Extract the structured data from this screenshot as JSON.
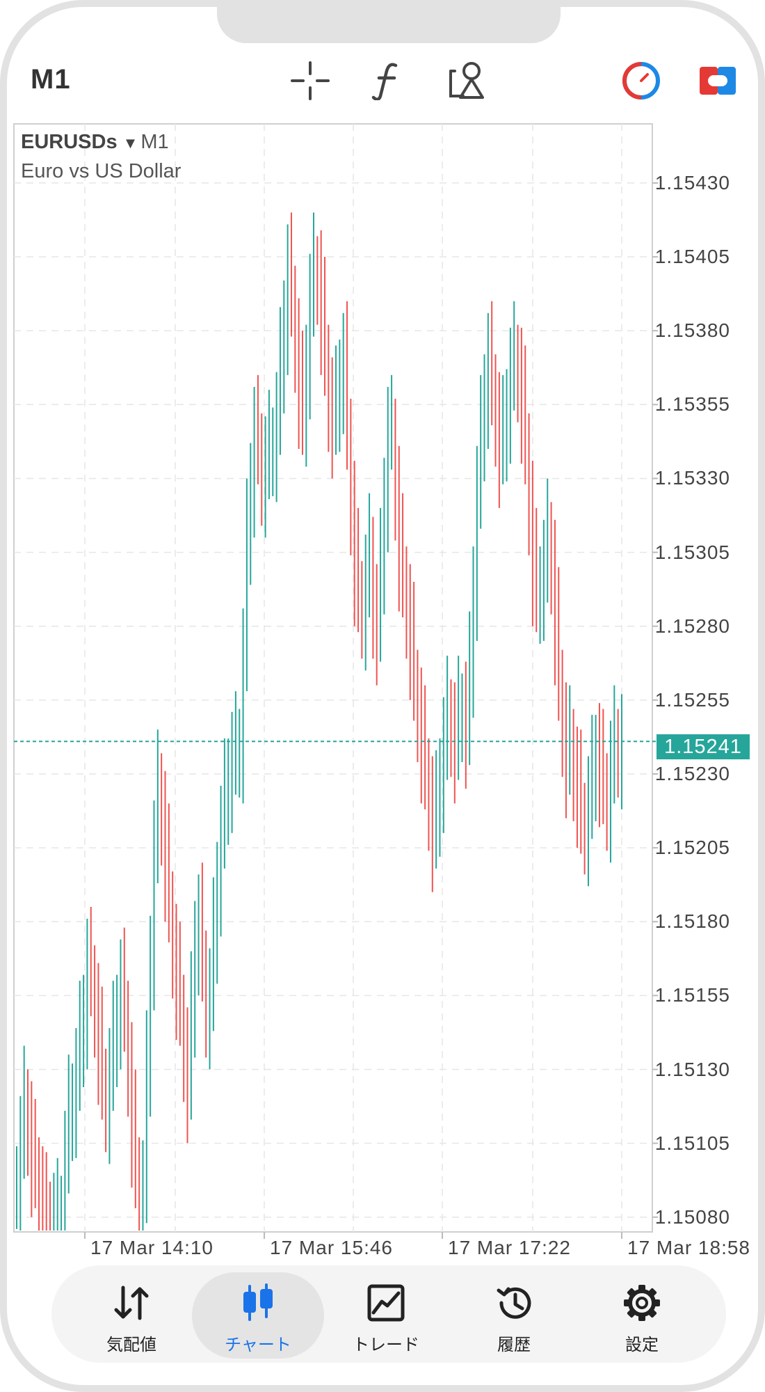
{
  "header": {
    "timeframe": "M1",
    "tools": [
      {
        "name": "crosshair-icon"
      },
      {
        "name": "indicators-icon"
      },
      {
        "name": "objects-icon"
      },
      {
        "name": "signal-icon"
      },
      {
        "name": "one-click-trading-icon"
      }
    ]
  },
  "chart": {
    "symbol": "EURUSDs",
    "timeframe": "M1",
    "description": "Euro vs US Dollar",
    "current_price": "1.15241",
    "colors": {
      "bull": "#26a69a",
      "bear": "#ef5350",
      "grid": "#e6e6e6",
      "accent": "#26a69a"
    }
  },
  "chart_data": {
    "type": "bar",
    "style": "ohlc-bars",
    "ylim": [
      1.15075,
      1.1545
    ],
    "price_ticks": [
      "1.15430",
      "1.15405",
      "1.15380",
      "1.15355",
      "1.15330",
      "1.15305",
      "1.15280",
      "1.15255",
      "1.15230",
      "1.15205",
      "1.15180",
      "1.15155",
      "1.15130",
      "1.15105",
      "1.15080"
    ],
    "time_ticks": [
      "17 Mar 14:10",
      "17 Mar 15:46",
      "17 Mar 17:22",
      "17 Mar 18:58"
    ],
    "current_price": 1.15241,
    "values": [
      1.15092,
      1.15105,
      1.15118,
      1.1511,
      1.151,
      1.15095,
      1.15088,
      1.15082,
      1.1508,
      1.15078,
      1.15079,
      1.1508,
      1.15082,
      1.151,
      1.15115,
      1.1512,
      1.15128,
      1.1514,
      1.1515,
      1.15165,
      1.1516,
      1.1515,
      1.15138,
      1.15125,
      1.15118,
      1.15128,
      1.1514,
      1.1515,
      1.15158,
      1.15148,
      1.1513,
      1.1511,
      1.15095,
      1.1508,
      1.1509,
      1.1513,
      1.1517,
      1.15205,
      1.15225,
      1.15215,
      1.152,
      1.15185,
      1.1517,
      1.1516,
      1.1515,
      1.15135,
      1.15125,
      1.1515,
      1.15175,
      1.1518,
      1.15165,
      1.1515,
      1.15155,
      1.15175,
      1.15195,
      1.1521,
      1.15222,
      1.1523,
      1.15235,
      1.15238,
      1.1524,
      1.1527,
      1.1531,
      1.1533,
      1.15345,
      1.1534,
      1.1533,
      1.15335,
      1.1534,
      1.15342,
      1.1535,
      1.15368,
      1.15385,
      1.154,
      1.1539,
      1.15375,
      1.1536,
      1.1535,
      1.1537,
      1.1539,
      1.154,
      1.15398,
      1.15385,
      1.1537,
      1.15355,
      1.1535,
      1.15355,
      1.15365,
      1.1537,
      1.15345,
      1.1532,
      1.153,
      1.1529,
      1.15285,
      1.15295,
      1.15305,
      1.15285,
      1.1528,
      1.153,
      1.15325,
      1.15345,
      1.15345,
      1.15325,
      1.15305,
      1.15295,
      1.15285,
      1.15275,
      1.1526,
      1.1525,
      1.1524,
      1.1523,
      1.1522,
      1.1521,
      1.15218,
      1.1523,
      1.1524,
      1.1525,
      1.15245,
      1.1524,
      1.1525,
      1.15252,
      1.15245,
      1.15265,
      1.15295,
      1.15325,
      1.15345,
      1.1536,
      1.1537,
      1.1536,
      1.1535,
      1.1534,
      1.15345,
      1.15355,
      1.15365,
      1.1537,
      1.15365,
      1.15355,
      1.1534,
      1.1532,
      1.153,
      1.1529,
      1.15295,
      1.153,
      1.1531,
      1.153,
      1.1528,
      1.1526,
      1.15245,
      1.15235,
      1.1524,
      1.1523,
      1.15225,
      1.15215,
      1.15212,
      1.1522,
      1.1523,
      1.15238,
      1.15232,
      1.15225,
      1.1522,
      1.15232,
      1.1524,
      1.15238,
      1.15241
    ]
  },
  "bottom_nav": {
    "items": [
      {
        "label": "気配値",
        "icon": "quotes-icon"
      },
      {
        "label": "チャート",
        "icon": "chart-icon"
      },
      {
        "label": "トレード",
        "icon": "trade-icon"
      },
      {
        "label": "履歴",
        "icon": "history-icon"
      },
      {
        "label": "設定",
        "icon": "settings-icon"
      }
    ]
  }
}
